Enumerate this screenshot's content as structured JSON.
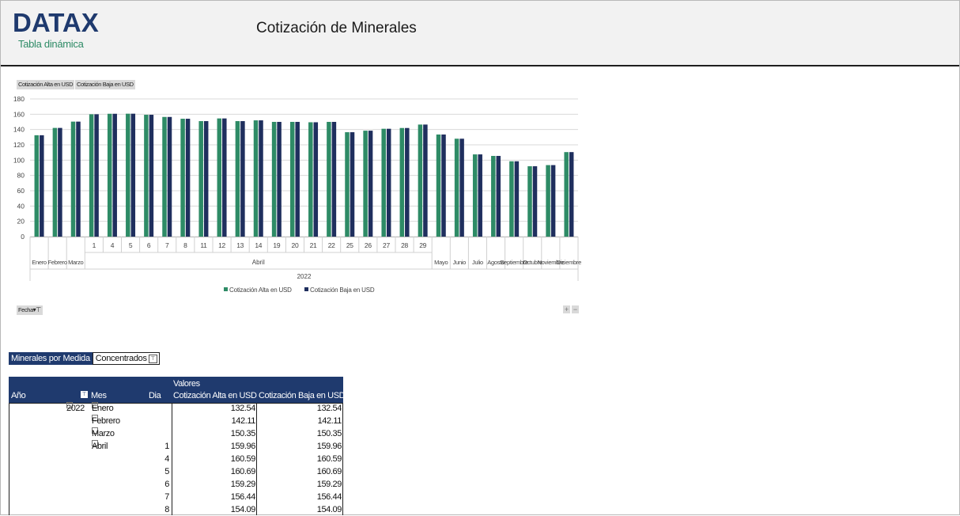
{
  "header": {
    "logo": "DATAX",
    "logo_subtitle": "Tabla dinámica",
    "title": "Cotización de Minerales"
  },
  "chart_fields": {
    "value_field_1": "Cotización Alta en USD",
    "value_field_2": "Cotización Baja en USD",
    "axis_field": "Fecha",
    "expand_plus": "+",
    "collapse_minus": "−"
  },
  "colors": {
    "series_alta": "#2e8b66",
    "series_baja": "#1f2f5e",
    "header_blue": "#1f3a6e"
  },
  "chart_data": {
    "type": "bar",
    "ylim": [
      0,
      180
    ],
    "yticks": [
      0,
      20,
      40,
      60,
      80,
      100,
      120,
      140,
      160,
      180
    ],
    "grid": true,
    "legend_position": "bottom",
    "categories": [
      "Enero",
      "Febrero",
      "Marzo",
      "1",
      "4",
      "5",
      "6",
      "7",
      "8",
      "11",
      "12",
      "13",
      "14",
      "19",
      "20",
      "21",
      "22",
      "25",
      "26",
      "27",
      "28",
      "29",
      "Mayo",
      "Junio",
      "Julio",
      "Agosto",
      "Septiembre",
      "Octubre",
      "Noviembre",
      "Diciembre"
    ],
    "group_labels": [
      "Abril",
      "2022"
    ],
    "series": [
      {
        "name": "Cotización Alta en USD",
        "values": [
          132.54,
          142.11,
          150.35,
          159.96,
          160.59,
          160.69,
          159.29,
          156.44,
          154.09,
          151,
          154.5,
          151,
          152,
          150,
          150,
          149.5,
          150,
          136.5,
          138.5,
          141,
          142,
          146.5,
          133.5,
          128,
          107.5,
          105.5,
          98.5,
          92,
          93.5,
          110.5
        ]
      },
      {
        "name": "Cotización Baja en USD",
        "values": [
          132.54,
          142.11,
          150.35,
          159.96,
          160.59,
          160.69,
          159.29,
          156.44,
          154.09,
          151,
          154.5,
          151,
          152,
          150,
          150,
          149.5,
          150,
          136.5,
          138.5,
          141,
          142,
          146.5,
          133.5,
          128,
          107.5,
          105.5,
          98.5,
          92,
          93.5,
          110.5
        ]
      }
    ]
  },
  "filter": {
    "label": "Minerales por Medida",
    "value": "Concentrados",
    "icon": "filter-icon"
  },
  "pivot": {
    "values_header": "Valores",
    "col_year": "Año",
    "col_month": "Mes",
    "col_day": "Dia",
    "col_high": "Cotización Alta en USD",
    "col_low": "Cotización Baja en USD",
    "rows": [
      {
        "year": "2022",
        "month": "Enero",
        "day": "",
        "high": "132.54",
        "low": "132.54"
      },
      {
        "year": "",
        "month": "Febrero",
        "day": "",
        "high": "142.11",
        "low": "142.11"
      },
      {
        "year": "",
        "month": "Marzo",
        "day": "",
        "high": "150.35",
        "low": "150.35"
      },
      {
        "year": "",
        "month": "Abril",
        "day": "1",
        "high": "159.96",
        "low": "159.96"
      },
      {
        "year": "",
        "month": "",
        "day": "4",
        "high": "160.59",
        "low": "160.59"
      },
      {
        "year": "",
        "month": "",
        "day": "5",
        "high": "160.69",
        "low": "160.69"
      },
      {
        "year": "",
        "month": "",
        "day": "6",
        "high": "159.29",
        "low": "159.29"
      },
      {
        "year": "",
        "month": "",
        "day": "7",
        "high": "156.44",
        "low": "156.44"
      },
      {
        "year": "",
        "month": "",
        "day": "8",
        "high": "154.09",
        "low": "154.09"
      }
    ]
  }
}
